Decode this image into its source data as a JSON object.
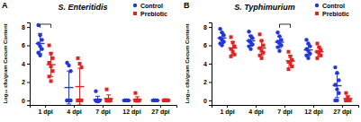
{
  "chart_data": [
    {
      "type": "scatter",
      "panel": "A",
      "title": "S. Enteritidis",
      "y_label": "Log₁₀ cfu/gram Cecum Content",
      "categories": [
        "1 dpi",
        "4 dpi",
        "7 dpi",
        "12 dpi",
        "27 dpi"
      ],
      "ylim": [
        -0.5,
        8.5
      ],
      "yticks": [
        0,
        2,
        4,
        6,
        8
      ],
      "legend": "upper right",
      "series": [
        {
          "name": "Control",
          "color": "#2436d8",
          "marker": "circle",
          "values": [
            6.2,
            1.4,
            0.1,
            0,
            0
          ],
          "error": [
            1.1,
            1.8,
            0.35,
            0,
            0
          ],
          "points": [
            [
              8.2,
              7.1,
              6.6,
              6.2,
              5.9,
              5.6,
              5.2,
              4.9
            ],
            [
              4.1,
              3.8,
              3.2,
              0,
              0,
              0,
              0,
              0
            ],
            [
              1.0,
              0,
              0,
              0,
              0,
              0,
              0,
              0
            ],
            [
              0,
              0,
              0,
              0,
              0,
              0,
              0,
              0
            ],
            [
              0,
              0,
              0,
              0,
              0,
              0,
              0,
              0
            ]
          ]
        },
        {
          "name": "Prebiotic",
          "color": "#de2424",
          "marker": "square",
          "values": [
            3.9,
            1.5,
            0.2,
            0.1,
            0
          ],
          "error": [
            1.3,
            2.0,
            0.4,
            0.3,
            0
          ],
          "points": [
            [
              6.0,
              5.1,
              4.6,
              4.1,
              3.7,
              3.2,
              2.6,
              2.1
            ],
            [
              4.6,
              4.0,
              3.6,
              0,
              0,
              0,
              0,
              0
            ],
            [
              1.2,
              0,
              0,
              0,
              0,
              0,
              0,
              0
            ],
            [
              0.8,
              0,
              0,
              0,
              0,
              0,
              0,
              0
            ],
            [
              0,
              0,
              0,
              0,
              0,
              0,
              0,
              0
            ]
          ]
        }
      ]
    },
    {
      "type": "scatter",
      "panel": "B",
      "title": "S. Typhimurium",
      "y_label": "Log₁₀ cfu/gram Cecum Content",
      "categories": [
        "1 dpi",
        "4 dpi",
        "7 dpi",
        "12 dpi",
        "27 dpi"
      ],
      "ylim": [
        -0.5,
        8.5
      ],
      "yticks": [
        0,
        2,
        4,
        6,
        8
      ],
      "legend": "upper right",
      "series": [
        {
          "name": "Control",
          "color": "#2436d8",
          "marker": "circle",
          "values": [
            6.8,
            6.5,
            6.35,
            5.5,
            1.6
          ],
          "error": [
            0.6,
            0.6,
            0.6,
            0.65,
            1.3
          ],
          "points": [
            [
              7.8,
              7.4,
              7.1,
              6.8,
              6.6,
              6.4,
              6.2,
              6.0
            ],
            [
              7.5,
              7.0,
              6.8,
              6.5,
              6.3,
              6.1,
              5.9,
              5.6
            ],
            [
              7.4,
              7.0,
              6.6,
              6.4,
              6.2,
              6.0,
              5.8,
              5.4
            ],
            [
              6.6,
              6.2,
              5.9,
              5.6,
              5.4,
              5.1,
              4.9,
              4.6
            ],
            [
              3.6,
              3.0,
              2.2,
              1.7,
              1.2,
              0.8,
              0,
              0
            ]
          ]
        },
        {
          "name": "Prebiotic",
          "color": "#de2424",
          "marker": "square",
          "values": [
            5.7,
            5.7,
            4.3,
            5.3,
            0.2
          ],
          "error": [
            0.7,
            0.8,
            0.6,
            0.5,
            0.3
          ],
          "points": [
            [
              6.9,
              6.3,
              5.9,
              5.6,
              5.3,
              5.0,
              4.8
            ],
            [
              7.2,
              6.5,
              6.0,
              5.7,
              5.4,
              5.2,
              4.9,
              4.6
            ],
            [
              5.3,
              4.8,
              4.4,
              4.2,
              4.0,
              3.7,
              3.4
            ],
            [
              6.2,
              5.8,
              5.5,
              5.3,
              5.1,
              4.9,
              4.6
            ],
            [
              0.8,
              0.3,
              0,
              0,
              0,
              0,
              0
            ]
          ]
        }
      ]
    }
  ]
}
